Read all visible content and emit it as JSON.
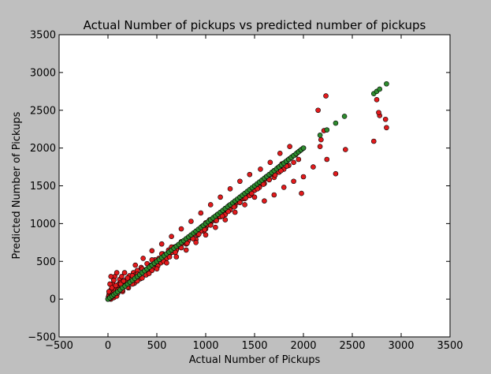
{
  "chart_data": {
    "type": "scatter",
    "title": "Actual Number of pickups vs predicted number of pickups",
    "xlabel": "Actual Number of Pickups",
    "ylabel": "Predicted Number of Pickups",
    "xlim": [
      -500,
      3500
    ],
    "ylim": [
      -500,
      3500
    ],
    "xticks": [
      -500,
      0,
      500,
      1000,
      1500,
      2000,
      2500,
      3000,
      3500
    ],
    "yticks": [
      -500,
      0,
      500,
      1000,
      1500,
      2000,
      2500,
      3000,
      3500
    ],
    "xtick_labels": [
      "−500",
      "0",
      "500",
      "1000",
      "1500",
      "2000",
      "2500",
      "3000",
      "3500"
    ],
    "ytick_labels": [
      "−500",
      "0",
      "500",
      "1000",
      "1500",
      "2000",
      "2500",
      "3000",
      "3500"
    ],
    "grid": false,
    "legend": "none",
    "series": [
      {
        "color": "#e31a1c",
        "x": [
          0,
          5,
          10,
          15,
          20,
          25,
          30,
          35,
          40,
          45,
          50,
          55,
          60,
          65,
          70,
          80,
          90,
          100,
          110,
          120,
          130,
          140,
          150,
          160,
          170,
          180,
          190,
          200,
          220,
          240,
          260,
          280,
          300,
          320,
          340,
          360,
          380,
          400,
          420,
          440,
          460,
          480,
          500,
          520,
          540,
          560,
          580,
          600,
          620,
          640,
          660,
          680,
          700,
          720,
          740,
          760,
          780,
          800,
          820,
          840,
          860,
          880,
          900,
          920,
          940,
          960,
          980,
          1000,
          1020,
          1040,
          1060,
          1080,
          1100,
          1120,
          1140,
          1160,
          1180,
          1200,
          1220,
          1240,
          1260,
          1280,
          1300,
          1320,
          1340,
          1360,
          1380,
          1400,
          1420,
          1440,
          1460,
          1480,
          1500,
          1520,
          1540,
          1560,
          1580,
          1600,
          1620,
          1640,
          1660,
          1680,
          1700,
          1720,
          1740,
          1760,
          1780,
          1800,
          1820,
          1840,
          1860,
          1880,
          1900,
          1920,
          1940,
          1960,
          1980,
          2000,
          10,
          20,
          30,
          40,
          60,
          80,
          100,
          130,
          160,
          200,
          250,
          300,
          350,
          400,
          450,
          500,
          550,
          600,
          650,
          700,
          750,
          800,
          850,
          900,
          950,
          1000,
          1050,
          1100,
          1150,
          1200,
          1250,
          1300,
          1350,
          1400,
          1450,
          1500,
          1550,
          1600,
          1650,
          1700,
          1750,
          1800,
          1850,
          1900,
          1950,
          30,
          60,
          90,
          150,
          210,
          270,
          330,
          390,
          450,
          510,
          570,
          630,
          690,
          750,
          810,
          870,
          930,
          990,
          1050,
          1110,
          1170,
          1230,
          1290,
          1350,
          1410,
          1470,
          1530,
          1590,
          1650,
          1710,
          1770,
          1830,
          2150,
          2230,
          2170,
          2240,
          2330,
          2430,
          2210,
          2180,
          2100,
          2000,
          1980,
          2720,
          2750,
          2780,
          2770,
          2840,
          2850,
          1500,
          1400,
          1300,
          1200,
          1100,
          1000,
          900,
          800,
          700,
          600,
          500,
          420,
          350,
          300,
          250,
          200,
          150,
          100,
          50,
          20,
          1600,
          1700,
          1800,
          1900,
          1560,
          1660,
          1760,
          1860,
          1450,
          1350,
          1250,
          1150,
          1050,
          950,
          850,
          750,
          650,
          550,
          450,
          360,
          280
        ],
        "y": [
          0,
          30,
          60,
          10,
          80,
          20,
          120,
          40,
          150,
          60,
          200,
          80,
          250,
          100,
          300,
          120,
          350,
          180,
          200,
          260,
          220,
          300,
          180,
          240,
          350,
          220,
          260,
          280,
          310,
          260,
          350,
          320,
          380,
          300,
          420,
          390,
          350,
          470,
          410,
          450,
          420,
          520,
          470,
          540,
          480,
          600,
          560,
          580,
          650,
          610,
          620,
          690,
          660,
          720,
          700,
          740,
          760,
          790,
          770,
          830,
          810,
          860,
          880,
          850,
          920,
          960,
          900,
          1010,
          980,
          1050,
          1030,
          1080,
          1060,
          1120,
          1090,
          1150,
          1130,
          1200,
          1170,
          1240,
          1220,
          1260,
          1300,
          1280,
          1320,
          1350,
          1330,
          1380,
          1400,
          1420,
          1440,
          1460,
          1490,
          1480,
          1520,
          1540,
          1560,
          1580,
          1620,
          1600,
          1650,
          1680,
          1700,
          1710,
          1740,
          1760,
          1790,
          1800,
          1820,
          1840,
          1860,
          1880,
          1900,
          1910,
          1940,
          1960,
          1980,
          2000,
          100,
          200,
          300,
          150,
          250,
          180,
          120,
          200,
          240,
          280,
          310,
          330,
          400,
          380,
          520,
          460,
          600,
          540,
          690,
          650,
          760,
          730,
          820,
          790,
          900,
          930,
          990,
          1040,
          1090,
          1120,
          1180,
          1230,
          1280,
          1330,
          1370,
          1440,
          1480,
          1530,
          1580,
          1610,
          1680,
          1720,
          1770,
          1810,
          1850,
          0,
          20,
          40,
          100,
          150,
          210,
          270,
          320,
          380,
          440,
          500,
          560,
          620,
          680,
          740,
          800,
          860,
          920,
          980,
          1040,
          1100,
          1160,
          1220,
          1280,
          1340,
          1400,
          1460,
          1520,
          1580,
          1640,
          1700,
          1760,
          2500,
          2690,
          2020,
          1850,
          1660,
          1980,
          2230,
          2110,
          1750,
          1620,
          1400,
          2090,
          2640,
          2430,
          2470,
          2380,
          2270,
          1350,
          1250,
          1150,
          1050,
          950,
          850,
          750,
          650,
          560,
          480,
          400,
          340,
          280,
          240,
          200,
          160,
          120,
          80,
          40,
          10,
          1300,
          1380,
          1480,
          1560,
          1720,
          1810,
          1930,
          2020,
          1650,
          1560,
          1460,
          1350,
          1250,
          1140,
          1030,
          930,
          830,
          730,
          640,
          540,
          450
        ]
      },
      {
        "color": "#2e8b2e",
        "x": [
          0,
          20,
          40,
          60,
          80,
          100,
          125,
          150,
          175,
          200,
          225,
          250,
          275,
          300,
          325,
          350,
          375,
          400,
          425,
          450,
          475,
          500,
          525,
          550,
          575,
          600,
          625,
          650,
          675,
          700,
          725,
          750,
          775,
          800,
          825,
          850,
          875,
          900,
          925,
          950,
          975,
          1000,
          1025,
          1050,
          1075,
          1100,
          1125,
          1150,
          1175,
          1200,
          1225,
          1250,
          1275,
          1300,
          1325,
          1350,
          1375,
          1400,
          1425,
          1450,
          1475,
          1500,
          1525,
          1550,
          1575,
          1600,
          1625,
          1650,
          1675,
          1700,
          1725,
          1750,
          1775,
          1800,
          1825,
          1850,
          1875,
          1900,
          1925,
          1950,
          1975,
          2000,
          2170,
          2240,
          2330,
          2420,
          2720,
          2750,
          2780,
          2850
        ],
        "y": [
          0,
          20,
          40,
          60,
          80,
          100,
          125,
          150,
          175,
          200,
          225,
          250,
          275,
          300,
          325,
          350,
          375,
          400,
          425,
          450,
          475,
          500,
          525,
          550,
          575,
          600,
          625,
          650,
          675,
          700,
          725,
          750,
          775,
          800,
          825,
          850,
          875,
          900,
          925,
          950,
          975,
          1000,
          1025,
          1050,
          1075,
          1100,
          1125,
          1150,
          1175,
          1200,
          1225,
          1250,
          1275,
          1300,
          1325,
          1350,
          1375,
          1400,
          1425,
          1450,
          1475,
          1500,
          1525,
          1550,
          1575,
          1600,
          1625,
          1650,
          1675,
          1700,
          1725,
          1750,
          1775,
          1800,
          1825,
          1850,
          1875,
          1900,
          1925,
          1950,
          1975,
          2000,
          2170,
          2240,
          2330,
          2420,
          2720,
          2750,
          2780,
          2850
        ]
      }
    ]
  }
}
